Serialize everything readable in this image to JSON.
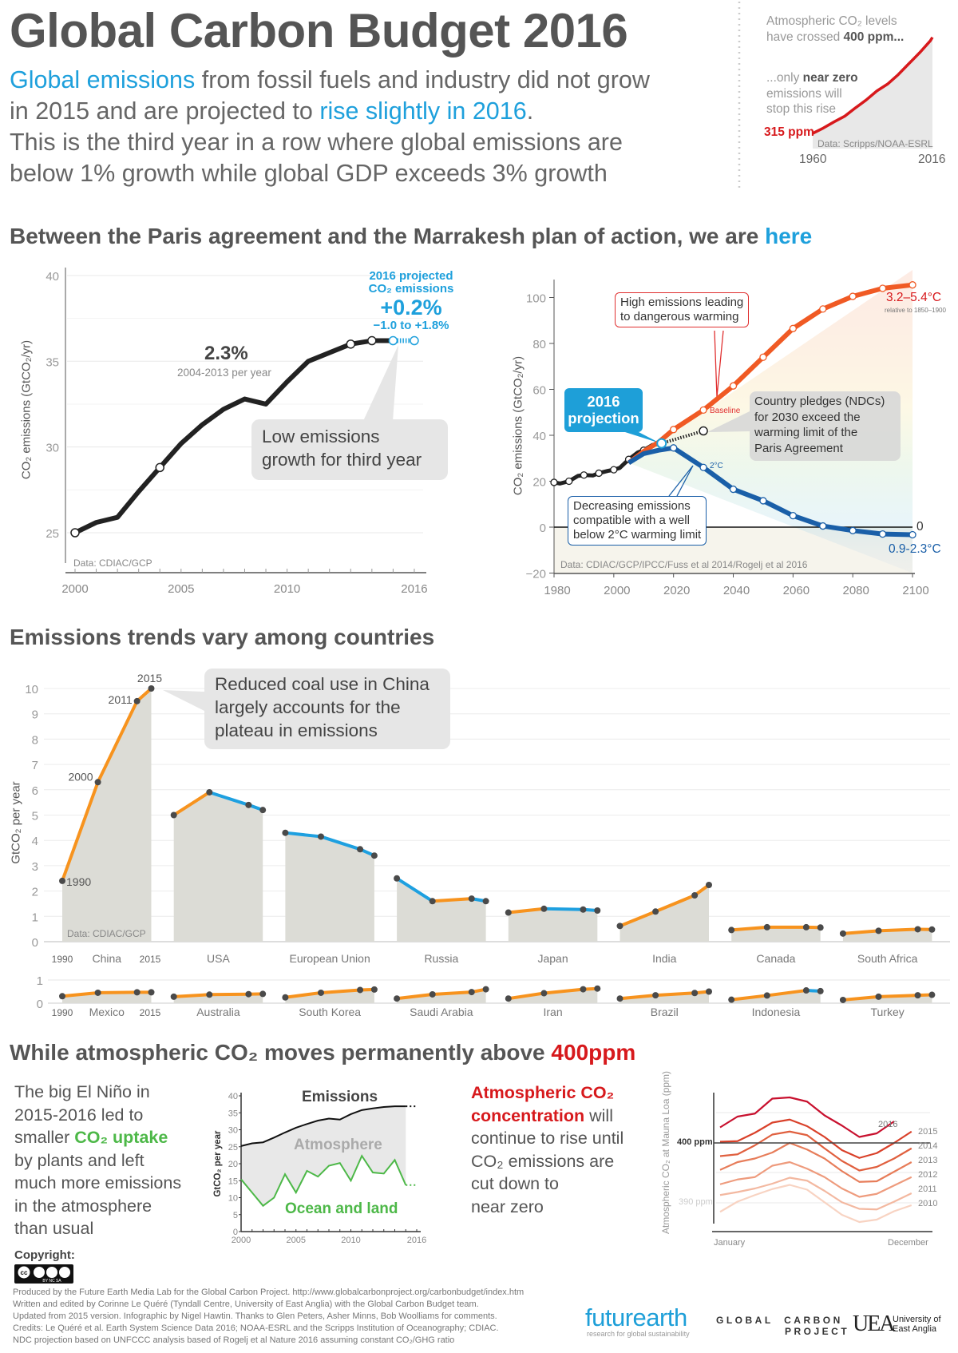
{
  "header": {
    "title": "Global Carbon Budget 2016",
    "line1_highlight": "Global emissions",
    "line1_rest": " from fossil fuels and industry did not grow",
    "line2_start": "in 2015 and are projected to ",
    "line2_highlight": "rise slightly in 2016",
    "line2_end": ".",
    "line3": "This is the third year in a row where global emissions are",
    "line4": "below 1% growth while global GDP exceeds 3% growth"
  },
  "inset": {
    "line1": "Atmospheric CO₂ levels",
    "line2_start": "have crossed ",
    "line2_highlight": "400 ppm",
    "line2_end": "...",
    "note_start": "...only ",
    "note_bold": "near zero",
    "note_line2": "emissions will",
    "note_line3": "stop this rise",
    "start_label": "315 ppm",
    "source": "Data: Scripps/NOAA-ESRL",
    "x_start": "1960",
    "x_end": "2016"
  },
  "section1": {
    "heading_start": "Between the Paris agreement and the Marrakesh plan of action, we are ",
    "heading_highlight": "here"
  },
  "section2": {
    "heading": "Emissions trends vary among countries"
  },
  "section3": {
    "heading_start": "While atmospheric CO₂ moves permanently above ",
    "heading_highlight": "400ppm"
  },
  "elnino_text": {
    "l1": "The big El Niño in",
    "l2": "2015-2016 led to",
    "l3_start": "smaller ",
    "l3_highlight": "CO₂ uptake",
    "l4": "by plants and left",
    "l5": "much more emissions",
    "l6": "in the atmosphere",
    "l7": "than usual"
  },
  "atmos_text": {
    "l1_highlight": "Atmospheric CO₂",
    "l2_highlight": "concentration",
    "l2_rest": " will",
    "l3": "continue to rise until",
    "l4": "CO₂ emissions are",
    "l5": "cut down to",
    "l6": "near zero"
  },
  "footer": {
    "copyright": "Copyright:",
    "license_badge": "cc BY NC SA",
    "lines": [
      "Produced by the Future Earth Media Lab for the Global Carbon Project. http://www.globalcarbonproject.org/carbonbudget/index.htm",
      "Written and edited by Corinne Le Quéré (Tyndall Centre, University of East Anglia) with the Global Carbon Budget team.",
      "Updated from 2015 version. Infographic by Nigel Hawtin. Thanks to Glen Peters, Asher Minns, Bob Woolliams for comments.",
      "Credits: Le Quéré et al. Earth System Science Data 2016; NOAA-ESRL and the Scripps Institution of Oceanography; CDIAC.",
      "NDC projection based on UNFCCC analysis based of Rogelj et al Nature 2016 assuming constant CO₂/GHG ratio"
    ]
  },
  "logos": {
    "futurearth": "futurearth",
    "futurearth_tagline": "research for global sustainability",
    "gcp_line1": "GLOBAL  CARBON",
    "gcp_line2": "PROJECT",
    "uea_mark": "UEA",
    "uea_line1": "University of",
    "uea_line2": "East Anglia"
  },
  "colors": {
    "text": "#555555",
    "accent_blue": "#1ea0dc",
    "accent_red": "#d7191c",
    "increase_orange": "#f7931e",
    "decrease_blue": "#1ea0e0",
    "baseline_red": "#f05a24",
    "two_degree_blue": "#1a5fa8",
    "uptake_green": "#4db848"
  },
  "chart_data": [
    {
      "type": "line",
      "x": [
        1960,
        1965,
        1970,
        1975,
        1980,
        1985,
        1990,
        1995,
        2000,
        2005,
        2010,
        2015,
        2016
      ],
      "values": [
        315,
        320,
        325.7,
        331,
        338.7,
        346,
        354.4,
        360.8,
        369.6,
        379.8,
        389.9,
        401,
        404.2
      ],
      "xlim": [
        1960,
        2016
      ],
      "ylabel": "",
      "color": "#d7191c"
    },
    {
      "type": "line",
      "ylabel": "CO₂ emissions (GtCO₂/yr)",
      "ylim": [
        25,
        40
      ],
      "xlim": [
        2000,
        2016
      ],
      "y_ticks": [
        "25",
        "30",
        "35",
        "40"
      ],
      "x_ticks": [
        "2000",
        "2005",
        "2010",
        "2016"
      ],
      "source": "Data: CDIAC/GCP",
      "series": [
        {
          "x": [
            2000,
            2001,
            2002,
            2003,
            2004,
            2005,
            2006,
            2007,
            2008,
            2009,
            2010,
            2011,
            2012,
            2013,
            2014,
            2015
          ],
          "values": [
            25.0,
            25.6,
            25.9,
            27.4,
            28.8,
            30.2,
            31.3,
            32.2,
            32.8,
            32.5,
            33.8,
            35.0,
            35.5,
            36.0,
            36.2,
            36.2
          ]
        },
        {
          "x": [
            2015,
            2016
          ],
          "values": [
            36.2,
            36.2
          ],
          "style": "projected"
        }
      ],
      "annotations": {
        "growth_rate": "2.3%",
        "growth_period": "2004-2013 per year",
        "proj_l1": "2016 projected",
        "proj_l2": "CO₂ emissions",
        "proj_value": "+0.2%",
        "proj_range": "−1.0 to +1.8%",
        "callout_l1": "Low emissions",
        "callout_l2": "growth for third year"
      }
    },
    {
      "type": "line",
      "ylabel": "CO₂ emissions (GtCO₂/yr)",
      "ylim": [
        -20,
        110
      ],
      "xlim": [
        1980,
        2100
      ],
      "y_ticks": [
        "−20",
        "0",
        "20",
        "40",
        "60",
        "80",
        "100"
      ],
      "x_ticks": [
        "1980",
        "2000",
        "2020",
        "2040",
        "2060",
        "2080",
        "2100"
      ],
      "source": "Data: CDIAC/GCP/IPCC/Fuss et al 2014/Rogelj et al 2016",
      "series": [
        {
          "name": "historical",
          "x": [
            1980,
            1982,
            1985,
            1988,
            1990,
            1993,
            1995,
            1998,
            2000,
            2002,
            2005,
            2008,
            2010,
            2013,
            2015
          ],
          "values": [
            19.5,
            19,
            20,
            22.3,
            22.7,
            22.5,
            23.5,
            24.5,
            25,
            25.8,
            29.5,
            32.5,
            33.5,
            35.8,
            36.2
          ]
        },
        {
          "name": "Baseline",
          "x": [
            2005,
            2010,
            2015,
            2020,
            2030,
            2040,
            2050,
            2060,
            2070,
            2080,
            2090,
            2100
          ],
          "values": [
            28,
            33,
            37,
            42.5,
            51,
            61.5,
            74,
            86.5,
            95,
            100.5,
            104,
            105.5
          ]
        },
        {
          "name": "2°C",
          "x": [
            2005,
            2010,
            2015,
            2020,
            2030,
            2040,
            2050,
            2060,
            2070,
            2080,
            2090,
            2100
          ],
          "values": [
            28,
            32,
            33.5,
            34.5,
            26,
            16.5,
            11.5,
            5,
            0.5,
            -1.5,
            -3,
            -3.3
          ]
        },
        {
          "name": "NDC",
          "x": [
            2016,
            2030
          ],
          "values": [
            36.5,
            41.9
          ],
          "style": "dotted"
        }
      ],
      "annotations": {
        "high_l1": "High emissions leading",
        "high_l2": "to dangerous warming",
        "proj_l1": "2016",
        "proj_l2": "projection",
        "ndc_l1": "Country pledges (NDCs)",
        "ndc_l2": "for 2030 exceed the",
        "ndc_l3": "warming limit of the",
        "ndc_l4": "Paris Agreement",
        "low_l1": "Decreasing emissions",
        "low_l2": "compatible with a well",
        "low_l3": "below 2°C warming limit",
        "baseline": "Baseline",
        "two_c": "2°C",
        "high_range": "3.2–5.4°C",
        "high_range_note": "relative to 1850–1900",
        "zero": "0",
        "low_range": "0.9-2.3°C"
      }
    },
    {
      "type": "area",
      "ylabel": "GtCO₂ per year",
      "ylim": [
        0,
        10
      ],
      "y_ticks": [
        "0",
        "1",
        "2",
        "3",
        "4",
        "5",
        "6",
        "7",
        "8",
        "9",
        "10"
      ],
      "small_y_ticks": [
        "0",
        "1"
      ],
      "years": [
        1990,
        2000,
        2011,
        2015
      ],
      "first_panel_start": "1990",
      "first_panel_end": "2015",
      "point_labels": [
        "1990",
        "2000",
        "2011",
        "2015"
      ],
      "source": "Data: CDIAC/GCP",
      "callout": [
        "Reduced coal use in China",
        "largely accounts for the",
        "plateau in emissions"
      ],
      "countries": [
        {
          "name": "China",
          "values": [
            2.4,
            6.3,
            9.5,
            10.0
          ]
        },
        {
          "name": "USA",
          "values": [
            5.0,
            5.9,
            5.4,
            5.2
          ]
        },
        {
          "name": "European Union",
          "values": [
            4.3,
            4.15,
            3.65,
            3.4
          ]
        },
        {
          "name": "Russia",
          "values": [
            2.5,
            1.6,
            1.7,
            1.6
          ]
        },
        {
          "name": "Japan",
          "values": [
            1.15,
            1.3,
            1.27,
            1.23
          ]
        },
        {
          "name": "India",
          "values": [
            0.62,
            1.19,
            1.83,
            2.24
          ]
        },
        {
          "name": "Canada",
          "values": [
            0.46,
            0.57,
            0.57,
            0.56
          ]
        },
        {
          "name": "South Africa",
          "values": [
            0.32,
            0.43,
            0.49,
            0.48
          ]
        }
      ],
      "small_countries": [
        {
          "name": "Mexico",
          "values": [
            0.3,
            0.45,
            0.47,
            0.47
          ]
        },
        {
          "name": "Australia",
          "values": [
            0.28,
            0.37,
            0.39,
            0.4
          ]
        },
        {
          "name": "South Korea",
          "values": [
            0.25,
            0.45,
            0.57,
            0.59
          ]
        },
        {
          "name": "Saudi Arabia",
          "values": [
            0.2,
            0.38,
            0.48,
            0.6
          ]
        },
        {
          "name": "Iran",
          "values": [
            0.2,
            0.43,
            0.6,
            0.63
          ]
        },
        {
          "name": "Brazil",
          "values": [
            0.2,
            0.34,
            0.44,
            0.5
          ]
        },
        {
          "name": "Indonesia",
          "values": [
            0.15,
            0.33,
            0.55,
            0.52
          ]
        },
        {
          "name": "Turkey",
          "values": [
            0.14,
            0.28,
            0.34,
            0.36
          ]
        }
      ]
    },
    {
      "type": "area",
      "ylabel": "GtCO₂ per year",
      "ylim": [
        0,
        40
      ],
      "xlim": [
        2000,
        2016
      ],
      "y_ticks": [
        "0",
        "5",
        "10",
        "15",
        "20",
        "25",
        "30",
        "35",
        "40"
      ],
      "x_ticks": [
        "2000",
        "2005",
        "2010",
        "2016"
      ],
      "area_label": "Atmosphere",
      "series": [
        {
          "name": "Emissions",
          "x": [
            2000,
            2001,
            2002,
            2003,
            2004,
            2005,
            2006,
            2007,
            2008,
            2009,
            2010,
            2011,
            2012,
            2013,
            2014,
            2015
          ],
          "values": [
            25.2,
            26,
            26.3,
            27.7,
            29.2,
            30.6,
            31.7,
            32.7,
            33.3,
            33.0,
            34.6,
            35.8,
            36.3,
            36.7,
            36.9,
            36.9
          ],
          "projected_2016": 36.9
        },
        {
          "name": "Ocean and land",
          "x": [
            2000,
            2001,
            2002,
            2003,
            2004,
            2005,
            2006,
            2007,
            2008,
            2009,
            2010,
            2011,
            2012,
            2013,
            2014,
            2015
          ],
          "values": [
            15.4,
            11.5,
            7.6,
            10,
            16.9,
            11.5,
            17.9,
            16.2,
            19.4,
            20.2,
            15,
            22.3,
            17.4,
            17.1,
            21.1,
            13.7
          ],
          "projected_2016": 13.7
        }
      ]
    },
    {
      "type": "line",
      "ylabel": "Atmospheric CO₂ at Mauna Loa (ppm)",
      "x_labels": [
        "January",
        "December"
      ],
      "ref_labels": [
        "400 ppm",
        "390 ppm"
      ],
      "series": [
        {
          "name": "2010",
          "values": [
            388.5,
            390.2,
            391.3,
            392.3,
            393.0,
            392.2,
            390.1,
            388.0,
            386.8,
            387.2,
            388.6,
            389.6
          ]
        },
        {
          "name": "2011",
          "values": [
            391.3,
            391.8,
            392.4,
            393.2,
            394.2,
            393.7,
            392.0,
            390.1,
            389.0,
            388.9,
            390.2,
            391.6
          ]
        },
        {
          "name": "2012",
          "values": [
            393.1,
            393.9,
            394.3,
            396.2,
            396.8,
            395.7,
            394.3,
            392.4,
            391.0,
            391.5,
            392.9,
            394.3
          ]
        },
        {
          "name": "2013",
          "values": [
            395.5,
            396.8,
            397.4,
            398.4,
            400.0,
            398.9,
            397.4,
            395.3,
            393.5,
            393.6,
            395.2,
            396.8
          ]
        },
        {
          "name": "2014",
          "values": [
            397.8,
            398.1,
            399.6,
            401.4,
            401.9,
            401.3,
            399.1,
            397.0,
            395.4,
            396.0,
            397.4,
            399.1
          ]
        },
        {
          "name": "2015",
          "values": [
            400.2,
            400.3,
            401.7,
            403.4,
            403.9,
            402.8,
            401.0,
            398.8,
            397.5,
            398.3,
            400.0,
            401.9
          ]
        },
        {
          "name": "2016",
          "values": [
            402.6,
            404.4,
            404.9,
            407.4,
            407.6,
            406.9,
            404.6,
            402.9,
            401.0,
            401.6,
            403.6
          ]
        }
      ]
    }
  ]
}
